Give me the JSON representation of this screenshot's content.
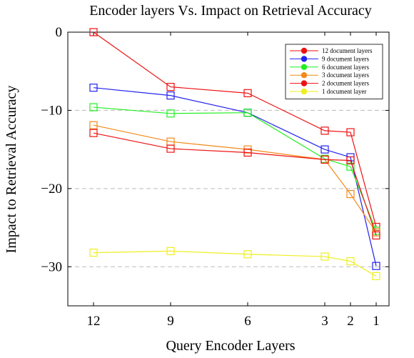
{
  "chart_data": {
    "type": "line",
    "title": "Encoder layers Vs. Impact on Retrieval Accuracy",
    "xlabel": "Query Encoder Layers",
    "ylabel": "Impact to Retrieval Accuracy",
    "x": [
      12,
      9,
      6,
      3,
      2,
      1
    ],
    "x_tick_labels": [
      "12",
      "9",
      "6",
      "3",
      "2",
      "1"
    ],
    "xlim": [
      13,
      0.5
    ],
    "ylim": [
      -35,
      0
    ],
    "y_ticks": [
      0,
      -10,
      -20,
      -30
    ],
    "y_tick_labels": [
      "0",
      "−10",
      "−20",
      "−30"
    ],
    "grid": "horizontal dashed",
    "legend_position": "top-right",
    "marker": "open-square",
    "series": [
      {
        "name": "12 document layers",
        "color": "#ee1111",
        "values": [
          0,
          -7.0,
          -7.8,
          -12.6,
          -12.8,
          -24.9
        ]
      },
      {
        "name": "9 document layers",
        "color": "#2222ee",
        "values": [
          -7.1,
          -8.1,
          -10.3,
          -15.0,
          -16.0,
          -29.9
        ]
      },
      {
        "name": "6 document layers",
        "color": "#22ee22",
        "values": [
          -9.6,
          -10.4,
          -10.3,
          -16.2,
          -17.2,
          -25.4
        ]
      },
      {
        "name": "3 document layers",
        "color": "#f28a1a",
        "values": [
          -11.9,
          -14.0,
          -15.0,
          -16.3,
          -20.7,
          -25.6
        ]
      },
      {
        "name": "2 document layers",
        "color": "#ee1111",
        "values": [
          -12.9,
          -14.9,
          -15.4,
          -16.3,
          -16.4,
          -26.0
        ]
      },
      {
        "name": "1 document layer",
        "color": "#eeee22",
        "values": [
          -28.2,
          -28.0,
          -28.4,
          -28.7,
          -29.3,
          -31.2
        ]
      }
    ]
  }
}
